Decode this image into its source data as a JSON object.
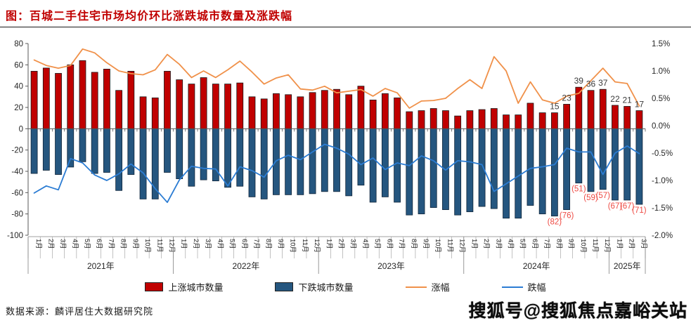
{
  "title": "图：百城二手住宅市场均价环比涨跌城市数量及涨跌幅",
  "legend": [
    {
      "label": "上涨城市数量",
      "type": "bar",
      "color": "#C00000"
    },
    {
      "label": "下跌城市数量",
      "type": "bar",
      "color": "#25567F"
    },
    {
      "label": "涨幅",
      "type": "line",
      "color": "#F0914A"
    },
    {
      "label": "跌幅",
      "type": "line",
      "color": "#2B7CD3"
    }
  ],
  "footer": {
    "source": "数据来源：麟评居住大数据研究院",
    "watermark": "搜狐号@搜狐焦点嘉峪关站"
  },
  "chart_data": {
    "type": "bar+line combo (dual axis)",
    "grid": "off",
    "legend_position": "bottom",
    "categories": [
      "1月",
      "2月",
      "3月",
      "4月",
      "5月",
      "6月",
      "7月",
      "8月",
      "9月",
      "10月",
      "11月",
      "12月",
      "1月",
      "2月",
      "3月",
      "4月",
      "5月",
      "6月",
      "7月",
      "8月",
      "9月",
      "10月",
      "11月",
      "12月",
      "1月",
      "2月",
      "3月",
      "4月",
      "5月",
      "6月",
      "7月",
      "8月",
      "9月",
      "10月",
      "11月",
      "12月",
      "1月",
      "2月",
      "3月",
      "4月",
      "5月",
      "6月",
      "7月",
      "8月",
      "9月",
      "10月",
      "11月",
      "12月",
      "1月",
      "2月",
      "3月"
    ],
    "year_groups": [
      {
        "label": "2021年",
        "months": 12
      },
      {
        "label": "2022年",
        "months": 12
      },
      {
        "label": "2023年",
        "months": 12
      },
      {
        "label": "2024年",
        "months": 12
      },
      {
        "label": "2025年",
        "months": 3
      }
    ],
    "left_axis": {
      "min": -100,
      "max": 80,
      "step": 20,
      "ticks": [
        "80",
        "60",
        "40",
        "20",
        "0",
        "-20",
        "-40",
        "-60",
        "-80",
        "-100"
      ]
    },
    "right_axis": {
      "min": -2.0,
      "max": 1.5,
      "step": 0.5,
      "ticks": [
        "1.5%",
        "1.0%",
        "0.5%",
        "0.0%",
        "-0.5%",
        "-1.0%",
        "-1.5%",
        "-2.0%"
      ]
    },
    "series": [
      {
        "name": "上涨城市数量",
        "type": "bar",
        "axis": "left",
        "color": "#C00000",
        "values": [
          54,
          57,
          52,
          60,
          64,
          53,
          56,
          36,
          54,
          30,
          29,
          54,
          46,
          42,
          48,
          42,
          42,
          43,
          30,
          28,
          33,
          32,
          30,
          34,
          36,
          37,
          32,
          40,
          27,
          33,
          29,
          16,
          17,
          19,
          17,
          12,
          17,
          18,
          19,
          13,
          13,
          24,
          15,
          15,
          23,
          39,
          36,
          37,
          22,
          21,
          17
        ]
      },
      {
        "name": "下跌城市数量",
        "type": "bar",
        "axis": "left",
        "color": "#25567F",
        "values": [
          -42,
          -39,
          -43,
          -36,
          -31,
          -42,
          -41,
          -58,
          -43,
          -66,
          -66,
          -41,
          -47,
          -54,
          -48,
          -49,
          -55,
          -54,
          -64,
          -66,
          -62,
          -62,
          -62,
          -61,
          -59,
          -59,
          -63,
          -53,
          -69,
          -64,
          -69,
          -81,
          -80,
          -74,
          -76,
          -81,
          -78,
          -73,
          -75,
          -84,
          -84,
          -72,
          -80,
          -82,
          -76,
          -51,
          -59,
          -57,
          -67,
          -67,
          -71
        ]
      },
      {
        "name": "涨幅",
        "type": "line",
        "axis": "right",
        "color": "#F0914A",
        "values": [
          1.2,
          1.1,
          1.05,
          1.1,
          1.4,
          1.33,
          1.15,
          1.0,
          0.95,
          0.93,
          1.02,
          1.3,
          1.12,
          0.88,
          1.0,
          0.88,
          1.02,
          1.18,
          0.98,
          0.76,
          0.87,
          0.93,
          0.67,
          0.65,
          0.72,
          0.6,
          0.63,
          0.66,
          0.54,
          0.68,
          0.6,
          0.32,
          0.45,
          0.46,
          0.5,
          0.68,
          0.84,
          0.68,
          1.26,
          1.0,
          0.41,
          0.8,
          0.47,
          0.41,
          0.54,
          0.59,
          0.82,
          1.05,
          0.8,
          0.77,
          0.36
        ]
      },
      {
        "name": "跌幅",
        "type": "line",
        "axis": "right",
        "color": "#2B7CD3",
        "values": [
          -1.23,
          -1.1,
          -1.17,
          -0.6,
          -0.68,
          -0.9,
          -1.0,
          -0.88,
          -0.7,
          -0.86,
          -1.15,
          -1.4,
          -0.99,
          -0.74,
          -0.78,
          -0.79,
          -1.1,
          -0.75,
          -0.82,
          -0.94,
          -0.64,
          -0.54,
          -0.62,
          -0.48,
          -0.34,
          -0.41,
          -0.52,
          -0.71,
          -0.59,
          -0.8,
          -0.68,
          -0.73,
          -0.55,
          -0.64,
          -0.81,
          -0.64,
          -0.66,
          -0.71,
          -1.2,
          -1.06,
          -0.92,
          -0.78,
          -0.75,
          -0.71,
          -0.41,
          -0.48,
          -0.48,
          -0.89,
          -0.5,
          -0.37,
          -0.51
        ]
      }
    ],
    "point_labels": {
      "start_index": 43,
      "rising": [
        "15",
        "23",
        "39",
        "36",
        "37",
        "22",
        "21",
        "17"
      ],
      "rising_color": "#3a3a3a",
      "falling": [
        "(82)",
        "(76)",
        "(51)",
        "(59)",
        "(57)",
        "(67)",
        "(67)",
        "(71)"
      ],
      "falling_color": "#EE4B44"
    }
  }
}
